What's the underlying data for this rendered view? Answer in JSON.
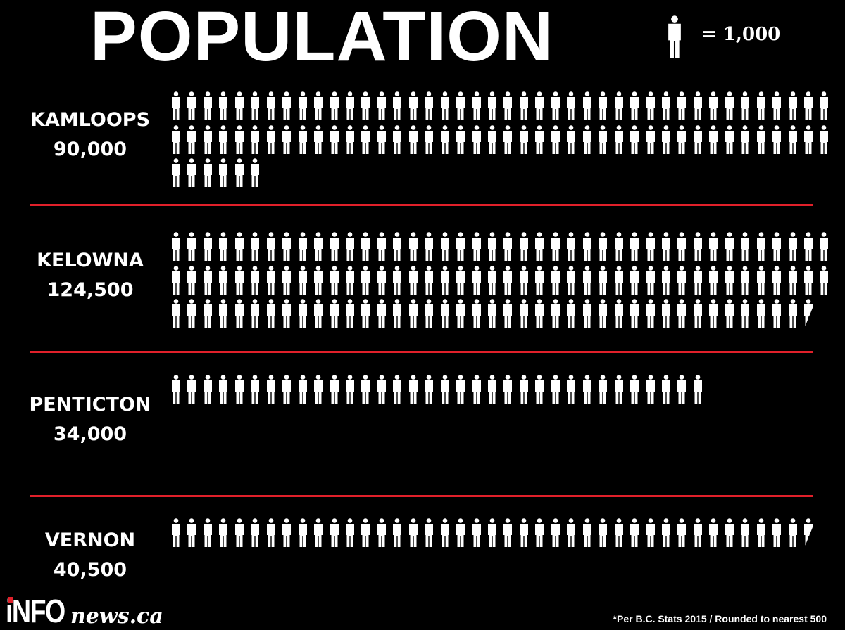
{
  "title": "POPULATION",
  "legend": {
    "icon": "person-icon",
    "text": "= 1,000"
  },
  "chart_data": {
    "type": "pictogram",
    "title": "POPULATION",
    "unit_per_icon": 1000,
    "icons_per_row": 42,
    "categories": [
      "KAMLOOPS",
      "KELOWNA",
      "PENTICTON",
      "VERNON"
    ],
    "values": [
      90000,
      124500,
      34000,
      40500
    ],
    "value_labels": [
      "90,000",
      "124,500",
      "34,000",
      "40,500"
    ],
    "icon_color": "#ffffff",
    "divider_color": "#e0202a"
  },
  "footnote": "*Per B.C. Stats 2015 / Rounded to nearest 500",
  "logo": {
    "info": "iNFO",
    "news": "news.ca",
    "accent": "#e0202a"
  }
}
